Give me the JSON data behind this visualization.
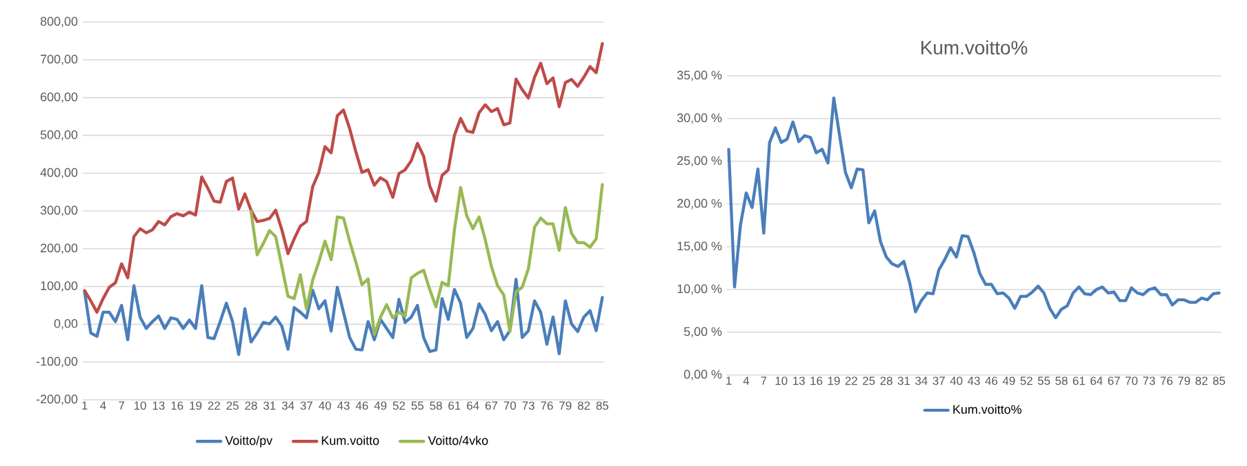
{
  "chart_data": [
    {
      "type": "line",
      "categories": [
        "1",
        null,
        null,
        "4",
        null,
        null,
        "7",
        null,
        null,
        "10",
        null,
        null,
        "13",
        null,
        null,
        "16",
        null,
        null,
        "19",
        null,
        null,
        "22",
        null,
        null,
        "25",
        null,
        null,
        "28",
        null,
        null,
        "31",
        null,
        null,
        "34",
        null,
        null,
        "37",
        null,
        null,
        "40",
        null,
        null,
        "43",
        null,
        null,
        "46",
        null,
        null,
        "49",
        null,
        null,
        "52",
        null,
        null,
        "55",
        null,
        null,
        "58",
        null,
        null,
        "61",
        null,
        null,
        "64",
        null,
        null,
        "67",
        null,
        null,
        "70",
        null,
        null,
        "73",
        null,
        null,
        "76",
        null,
        null,
        "79",
        null,
        null,
        "82",
        null,
        null,
        "85"
      ],
      "series": [
        {
          "name": "Voitto/pv",
          "color": "#4a7ebb",
          "values": [
            86,
            -23,
            -32,
            32,
            32,
            7,
            50,
            -41,
            102,
            19,
            -11,
            7,
            22,
            -11,
            17,
            13,
            -11,
            11,
            -11,
            102,
            -35,
            -38,
            7,
            56,
            7,
            -80,
            41,
            -47,
            -23,
            5,
            1,
            19,
            -5,
            -66,
            44,
            32,
            17,
            90,
            41,
            62,
            -18,
            98,
            32,
            -35,
            -66,
            -68,
            7,
            -41,
            13,
            -11,
            -35,
            66,
            5,
            19,
            50,
            -35,
            -72,
            -68,
            68,
            13,
            92,
            56,
            -35,
            -11,
            54,
            26,
            -17,
            7,
            -41,
            -17,
            119,
            -35,
            -17,
            62,
            32,
            -53,
            19,
            -78,
            62,
            1,
            -19,
            19,
            36,
            -17,
            71
          ]
        },
        {
          "name": "Kum.voitto",
          "color": "#be4b48",
          "values": [
            89,
            62,
            32,
            68,
            98,
            110,
            160,
            123,
            232,
            253,
            242,
            250,
            272,
            263,
            285,
            293,
            287,
            297,
            289,
            390,
            360,
            326,
            323,
            378,
            387,
            305,
            345,
            302,
            272,
            275,
            280,
            302,
            250,
            187,
            226,
            260,
            272,
            364,
            402,
            470,
            454,
            552,
            567,
            518,
            457,
            402,
            409,
            368,
            388,
            378,
            336,
            399,
            409,
            433,
            479,
            445,
            366,
            326,
            394,
            409,
            500,
            545,
            512,
            508,
            560,
            581,
            563,
            571,
            528,
            533,
            649,
            621,
            599,
            654,
            691,
            637,
            652,
            576,
            640,
            648,
            630,
            654,
            682,
            666,
            743
          ]
        },
        {
          "name": "Voitto/4vko",
          "color": "#98b954",
          "values": [
            null,
            null,
            null,
            null,
            null,
            null,
            null,
            null,
            null,
            null,
            null,
            null,
            null,
            null,
            null,
            null,
            null,
            null,
            null,
            null,
            null,
            null,
            null,
            null,
            null,
            null,
            null,
            299,
            184,
            214,
            248,
            232,
            153,
            74,
            68,
            131,
            41,
            117,
            165,
            220,
            171,
            284,
            281,
            220,
            165,
            105,
            120,
            -27,
            19,
            52,
            17,
            32,
            22,
            123,
            135,
            143,
            92,
            46,
            111,
            102,
            250,
            362,
            287,
            253,
            284,
            224,
            153,
            102,
            78,
            -19,
            86,
            98,
            147,
            257,
            281,
            266,
            266,
            196,
            309,
            241,
            216,
            216,
            204,
            226,
            370
          ]
        }
      ],
      "ylim": [
        -200,
        800
      ],
      "yticks": [
        {
          "value": -200,
          "label": "-200,00"
        },
        {
          "value": -100,
          "label": "-100,00"
        },
        {
          "value": 0,
          "label": "0,00"
        },
        {
          "value": 100,
          "label": "100,00"
        },
        {
          "value": 200,
          "label": "200,00"
        },
        {
          "value": 300,
          "label": "300,00"
        },
        {
          "value": 400,
          "label": "400,00"
        },
        {
          "value": 500,
          "label": "500,00"
        },
        {
          "value": 600,
          "label": "600,00"
        },
        {
          "value": 700,
          "label": "700,00"
        },
        {
          "value": 800,
          "label": "800,00"
        }
      ],
      "grid": "y",
      "legend": "bottom",
      "marker": "none",
      "line_style": "solid"
    },
    {
      "type": "line",
      "title": "Kum.voitto%",
      "categories": [
        "1",
        null,
        null,
        "4",
        null,
        null,
        "7",
        null,
        null,
        "10",
        null,
        null,
        "13",
        null,
        null,
        "16",
        null,
        null,
        "19",
        null,
        null,
        "22",
        null,
        null,
        "25",
        null,
        null,
        "28",
        null,
        null,
        "31",
        null,
        null,
        "34",
        null,
        null,
        "37",
        null,
        null,
        "40",
        null,
        null,
        "43",
        null,
        null,
        "46",
        null,
        null,
        "49",
        null,
        null,
        "52",
        null,
        null,
        "55",
        null,
        null,
        "58",
        null,
        null,
        "61",
        null,
        null,
        "64",
        null,
        null,
        "67",
        null,
        null,
        "70",
        null,
        null,
        "73",
        null,
        null,
        "76",
        null,
        null,
        "79",
        null,
        null,
        "82",
        null,
        null,
        "85"
      ],
      "series": [
        {
          "name": "Kum.voitto%",
          "color": "#4a7ebb",
          "values": [
            26.4,
            10.3,
            17.5,
            21.3,
            19.6,
            24.1,
            16.6,
            27.2,
            28.9,
            27.2,
            27.6,
            29.6,
            27.3,
            28.0,
            27.8,
            26.0,
            26.4,
            24.8,
            32.4,
            28.0,
            23.7,
            21.9,
            24.1,
            24.0,
            17.8,
            19.2,
            15.6,
            13.8,
            13.0,
            12.7,
            13.3,
            10.8,
            7.4,
            8.7,
            9.6,
            9.5,
            12.3,
            13.5,
            14.9,
            13.8,
            16.3,
            16.2,
            14.3,
            11.9,
            10.6,
            10.6,
            9.5,
            9.6,
            9.0,
            7.8,
            9.2,
            9.2,
            9.7,
            10.4,
            9.6,
            7.8,
            6.7,
            7.7,
            8.1,
            9.6,
            10.3,
            9.5,
            9.4,
            10.0,
            10.3,
            9.6,
            9.7,
            8.7,
            8.7,
            10.2,
            9.6,
            9.4,
            10.0,
            10.2,
            9.4,
            9.4,
            8.2,
            8.8,
            8.8,
            8.5,
            8.5,
            9.0,
            8.8,
            9.5,
            9.6
          ]
        }
      ],
      "ylim": [
        0,
        35
      ],
      "yticks": [
        {
          "value": 0,
          "label": "0,00 %"
        },
        {
          "value": 5,
          "label": "5,00 %"
        },
        {
          "value": 10,
          "label": "10,00 %"
        },
        {
          "value": 15,
          "label": "15,00 %"
        },
        {
          "value": 20,
          "label": "20,00 %"
        },
        {
          "value": 25,
          "label": "25,00 %"
        },
        {
          "value": 30,
          "label": "30,00 %"
        },
        {
          "value": 35,
          "label": "35,00 %"
        }
      ],
      "grid": "y",
      "legend": "bottom",
      "marker": "none",
      "line_style": "solid"
    }
  ]
}
